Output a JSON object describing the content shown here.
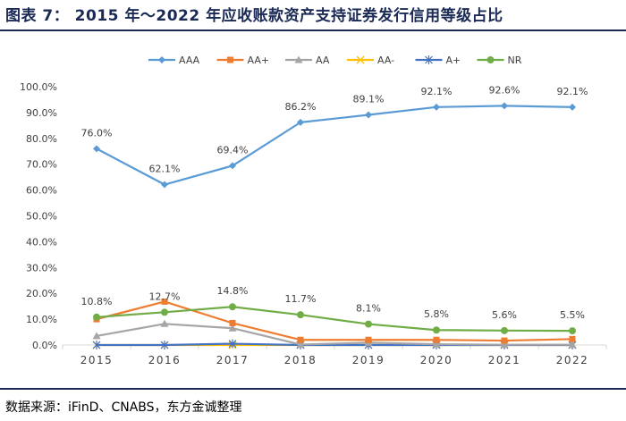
{
  "header": {
    "title": "图表 7：  2015 年～2022 年应收账款资产支持证券发行信用等级占比"
  },
  "footer": {
    "source": "数据来源：iFinD、CNABS，东方金诚整理"
  },
  "chart_data": {
    "type": "line",
    "title": "图表 7：  2015 年～2022 年应收账款资产支持证券发行信用等级占比",
    "xlabel": "",
    "ylabel": "",
    "categories": [
      "2015",
      "2016",
      "2017",
      "2018",
      "2019",
      "2020",
      "2021",
      "2022"
    ],
    "ylim": [
      0,
      100
    ],
    "yticks": [
      "0.0%",
      "10.0%",
      "20.0%",
      "30.0%",
      "40.0%",
      "50.0%",
      "60.0%",
      "70.0%",
      "80.0%",
      "90.0%",
      "100.0%"
    ],
    "grid": false,
    "legend_position": "top",
    "series": [
      {
        "name": "AAA",
        "color": "#5b9bd5",
        "marker": "diamond",
        "values": [
          76.0,
          62.1,
          69.4,
          86.2,
          89.1,
          92.1,
          92.6,
          92.1
        ],
        "labels": [
          "76.0%",
          "62.1%",
          "69.4%",
          "86.2%",
          "89.1%",
          "92.1%",
          "92.6%",
          "92.1%"
        ]
      },
      {
        "name": "AA+",
        "color": "#ed7d31",
        "marker": "square",
        "values": [
          10.0,
          16.8,
          8.5,
          2.0,
          2.0,
          2.0,
          1.7,
          2.3
        ]
      },
      {
        "name": "AA",
        "color": "#a5a5a5",
        "marker": "triangle",
        "values": [
          3.5,
          8.2,
          6.5,
          0.2,
          0.9,
          0.3,
          0.1,
          0.1
        ]
      },
      {
        "name": "AA-",
        "color": "#ffc000",
        "marker": "x",
        "values": [
          0.0,
          0.0,
          0.0,
          0.0,
          0.0,
          0.0,
          0.0,
          0.0
        ]
      },
      {
        "name": "A+",
        "color": "#4472c4",
        "marker": "star",
        "values": [
          0.0,
          0.0,
          0.5,
          0.0,
          0.0,
          0.0,
          0.0,
          0.0
        ]
      },
      {
        "name": "NR",
        "color": "#70ad47",
        "marker": "circle",
        "values": [
          10.8,
          12.7,
          14.8,
          11.7,
          8.1,
          5.8,
          5.6,
          5.5
        ],
        "labels": [
          "10.8%",
          "12.7%",
          "14.8%",
          "11.7%",
          "8.1%",
          "5.8%",
          "5.6%",
          "5.5%"
        ]
      }
    ]
  }
}
